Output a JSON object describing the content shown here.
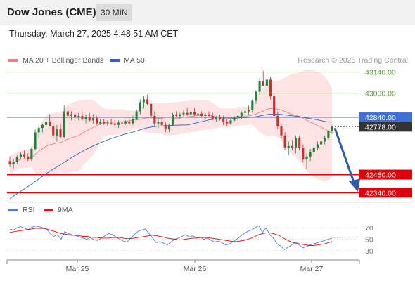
{
  "header": {
    "title": "Dow Jones (CME)",
    "timeframe": "30 MIN",
    "datetime": "Thursday, March 27, 2025 4:48:51 AM CET"
  },
  "legend": {
    "ma20": "MA 20 + Bollinger Bands",
    "ma50": "MA 50",
    "credit": "Research © 2025 Trading Central",
    "rsi": "RSI",
    "rsi_ma": "9MA"
  },
  "colors": {
    "ma20": "#f08080",
    "bands": "#fde3e3",
    "ma50": "#2f64b8",
    "resistance": "#8cc46a",
    "support": "#e0000a",
    "pivot": "#3d6fd6",
    "last": "#333333",
    "candle_up": "#27803a",
    "candle_down": "#c83030",
    "arrow": "#2e5ca8",
    "rsi": "#5577dd",
    "rsi_ma": "#e01010"
  },
  "chart_data": [
    {
      "type": "candlestick",
      "ylim": [
        42290,
        43190
      ],
      "x_ticks": [
        "Mar 25",
        "Mar 26",
        "Mar 27"
      ],
      "candles": [
        [
          42550,
          42580,
          42510,
          42530
        ],
        [
          42530,
          42560,
          42500,
          42545
        ],
        [
          42545,
          42590,
          42530,
          42575
        ],
        [
          42575,
          42610,
          42560,
          42595
        ],
        [
          42595,
          42620,
          42570,
          42580
        ],
        [
          42580,
          42600,
          42550,
          42560
        ],
        [
          42560,
          42640,
          42550,
          42630
        ],
        [
          42630,
          42760,
          42620,
          42740
        ],
        [
          42740,
          42790,
          42700,
          42770
        ],
        [
          42770,
          42800,
          42740,
          42790
        ],
        [
          42790,
          42830,
          42760,
          42810
        ],
        [
          42810,
          42860,
          42780,
          42780
        ],
        [
          42780,
          42800,
          42700,
          42720
        ],
        [
          42720,
          42790,
          42680,
          42760
        ],
        [
          42760,
          42800,
          42700,
          42710
        ],
        [
          42710,
          42920,
          42700,
          42880
        ],
        [
          42880,
          42920,
          42830,
          42850
        ],
        [
          42850,
          42880,
          42820,
          42860
        ],
        [
          42860,
          42880,
          42830,
          42840
        ],
        [
          42840,
          42870,
          42820,
          42850
        ],
        [
          42850,
          42880,
          42820,
          42830
        ],
        [
          42830,
          42860,
          42800,
          42845
        ],
        [
          42845,
          42870,
          42810,
          42820
        ],
        [
          42820,
          42860,
          42800,
          42835
        ],
        [
          42835,
          42850,
          42790,
          42800
        ],
        [
          42800,
          42830,
          42790,
          42810
        ],
        [
          42810,
          42830,
          42790,
          42800
        ],
        [
          42800,
          42820,
          42780,
          42805
        ],
        [
          42805,
          42830,
          42790,
          42800
        ],
        [
          42800,
          42820,
          42780,
          42790
        ],
        [
          42790,
          42820,
          42770,
          42805
        ],
        [
          42805,
          42830,
          42790,
          42800
        ],
        [
          42800,
          42820,
          42790,
          42810
        ],
        [
          42810,
          42840,
          42790,
          42800
        ],
        [
          42800,
          42850,
          42790,
          42830
        ],
        [
          42830,
          42890,
          42820,
          42880
        ],
        [
          42880,
          42960,
          42860,
          42940
        ],
        [
          42940,
          42980,
          42900,
          42960
        ],
        [
          42960,
          42990,
          42920,
          42930
        ],
        [
          42930,
          42960,
          42830,
          42850
        ],
        [
          42850,
          42880,
          42780,
          42800
        ],
        [
          42800,
          42840,
          42770,
          42810
        ],
        [
          42810,
          42840,
          42780,
          42790
        ],
        [
          42790,
          42810,
          42740,
          42760
        ],
        [
          42760,
          42800,
          42740,
          42790
        ],
        [
          42790,
          42870,
          42780,
          42860
        ],
        [
          42860,
          42880,
          42840,
          42850
        ],
        [
          42850,
          42870,
          42830,
          42860
        ],
        [
          42860,
          42890,
          42840,
          42870
        ],
        [
          42870,
          42900,
          42850,
          42860
        ],
        [
          42860,
          42890,
          42840,
          42875
        ],
        [
          42875,
          42900,
          42850,
          42860
        ],
        [
          42860,
          42880,
          42830,
          42865
        ],
        [
          42865,
          42880,
          42840,
          42850
        ],
        [
          42850,
          42870,
          42830,
          42860
        ],
        [
          42860,
          42880,
          42840,
          42850
        ],
        [
          42850,
          42870,
          42820,
          42830
        ],
        [
          42830,
          42850,
          42810,
          42840
        ],
        [
          42840,
          42860,
          42820,
          42830
        ],
        [
          42830,
          42850,
          42790,
          42810
        ],
        [
          42810,
          42830,
          42780,
          42800
        ],
        [
          42800,
          42830,
          42790,
          42820
        ],
        [
          42820,
          42850,
          42810,
          42840
        ],
        [
          42840,
          42860,
          42820,
          42850
        ],
        [
          42850,
          42880,
          42830,
          42870
        ],
        [
          42870,
          42900,
          42850,
          42880
        ],
        [
          42880,
          42920,
          42860,
          42890
        ],
        [
          42890,
          42960,
          42870,
          42950
        ],
        [
          42950,
          43020,
          42930,
          43010
        ],
        [
          43010,
          43100,
          42990,
          43080
        ],
        [
          43080,
          43150,
          43050,
          43050
        ],
        [
          43050,
          43120,
          43020,
          43090
        ],
        [
          43090,
          43110,
          42960,
          42980
        ],
        [
          42980,
          43000,
          42840,
          42850
        ],
        [
          42850,
          42880,
          42760,
          42780
        ],
        [
          42780,
          42800,
          42700,
          42720
        ],
        [
          42720,
          42740,
          42620,
          42640
        ],
        [
          42640,
          42680,
          42590,
          42650
        ],
        [
          42650,
          42690,
          42620,
          42640
        ],
        [
          42640,
          42720,
          42600,
          42700
        ],
        [
          42700,
          42720,
          42620,
          42640
        ],
        [
          42640,
          42660,
          42540,
          42560
        ],
        [
          42560,
          42600,
          42500,
          42580
        ],
        [
          42580,
          42630,
          42550,
          42610
        ],
        [
          42610,
          42660,
          42590,
          42640
        ],
        [
          42640,
          42680,
          42620,
          42660
        ],
        [
          42660,
          42700,
          42640,
          42680
        ],
        [
          42680,
          42720,
          42660,
          42700
        ],
        [
          42700,
          42760,
          42690,
          42750
        ],
        [
          42750,
          42790,
          42730,
          42778
        ]
      ],
      "levels": [
        {
          "value": 43140,
          "label": "43140.00",
          "kind": "resistance"
        },
        {
          "value": 43000,
          "label": "43000.00",
          "kind": "resistance"
        },
        {
          "value": 42840,
          "label": "42840.00",
          "kind": "pivot"
        },
        {
          "value": 42778,
          "label": "42778.00",
          "kind": "last"
        },
        {
          "value": 42460,
          "label": "42460.00",
          "kind": "support"
        },
        {
          "value": 42340,
          "label": "42340.00",
          "kind": "support"
        }
      ],
      "arrow": {
        "from": 42778,
        "to": 42340
      }
    },
    {
      "type": "line",
      "ylim": [
        20,
        85
      ],
      "y_ticks": [
        70,
        50,
        30
      ],
      "series": [
        {
          "name": "RSI",
          "values": [
            68,
            66,
            70,
            72,
            69,
            67,
            71,
            73,
            72,
            70,
            68,
            60,
            55,
            58,
            50,
            63,
            60,
            58,
            56,
            54,
            52,
            50,
            53,
            49,
            48,
            52,
            56,
            60,
            58,
            54,
            50,
            47,
            45,
            52,
            58,
            64,
            66,
            68,
            60,
            52,
            44,
            46,
            43,
            40,
            45,
            50,
            52,
            55,
            58,
            54,
            56,
            52,
            54,
            50,
            52,
            48,
            45,
            47,
            44,
            40,
            42,
            46,
            50,
            55,
            60,
            64,
            66,
            70,
            74,
            62,
            70,
            58,
            52,
            42,
            38,
            32,
            36,
            40,
            45,
            40,
            35,
            37,
            40,
            42,
            44,
            46,
            48,
            50,
            52
          ]
        },
        {
          "name": "9MA",
          "values": [
            62,
            63,
            64,
            65,
            66,
            67,
            68,
            69,
            69,
            69,
            68,
            66,
            64,
            62,
            60,
            59,
            58,
            57,
            57,
            56,
            55,
            55,
            54,
            53,
            53,
            52,
            52,
            52,
            53,
            53,
            53,
            52,
            51,
            51,
            52,
            53,
            54,
            55,
            56,
            57,
            56,
            55,
            54,
            52,
            51,
            50,
            49,
            49,
            50,
            51,
            52,
            52,
            53,
            53,
            53,
            52,
            51,
            50,
            49,
            48,
            47,
            46,
            46,
            47,
            48,
            50,
            52,
            55,
            58,
            60,
            61,
            61,
            60,
            58,
            55,
            51,
            48,
            45,
            43,
            42,
            41,
            40,
            39,
            39,
            40,
            41,
            42,
            44,
            46
          ]
        }
      ]
    }
  ]
}
